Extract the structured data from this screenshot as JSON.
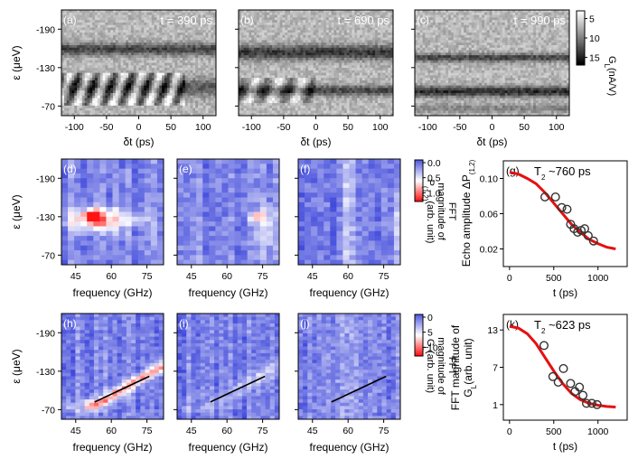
{
  "chart_data": [
    {
      "type": "heatmap",
      "row": "top",
      "panels": [
        {
          "label": "(a)",
          "annotation": "t = 390 ps"
        },
        {
          "label": "(b)",
          "annotation": "t = 690 ps"
        },
        {
          "label": "(c)",
          "annotation": "t = 990 ps"
        }
      ],
      "xlabel": "δt (ps)",
      "ylabel": "ε (μeV)",
      "xticks": [
        "-100",
        "-50",
        "0",
        "50",
        "100"
      ],
      "yticks": [
        "-190",
        "-130",
        "-70"
      ],
      "xlim": [
        -120,
        120
      ],
      "ylim": [
        -220,
        -55
      ],
      "colorbar": {
        "label": "G_L(nA/V)",
        "label_main": "G",
        "label_sub": "L",
        "label_rest": "(nA/V)",
        "ticks": [
          "5",
          "10",
          "15"
        ],
        "colormap": "gray",
        "range": [
          3,
          17
        ]
      }
    },
    {
      "type": "heatmap",
      "row": "middle",
      "panels": [
        {
          "label": "(d)"
        },
        {
          "label": "(e)"
        },
        {
          "label": "(f)"
        }
      ],
      "xlabel": "frequency (GHz)",
      "ylabel": "ε (μeV)",
      "xticks": [
        "45",
        "60",
        "75"
      ],
      "yticks": [
        "-190",
        "-130",
        "-70"
      ],
      "xlim": [
        39,
        82
      ],
      "ylim": [
        -220,
        -55
      ],
      "colorbar": {
        "label": "FFT magnitude of P_(1,2) (arb. unit)",
        "label_line1": "FFT",
        "label_line2": "magnitude of",
        "label_main": "P",
        "label_sub": "(1,2)",
        "label_rest": "(arb. unit)",
        "ticks": [
          "0.0",
          "0.5",
          "1.0"
        ],
        "colormap": "blue-white-red",
        "range": [
          0,
          1.2
        ]
      }
    },
    {
      "type": "heatmap",
      "row": "bottom",
      "panels": [
        {
          "label": "(h)"
        },
        {
          "label": "(i)"
        },
        {
          "label": "(j)"
        }
      ],
      "xlabel": "frequency (GHz)",
      "ylabel": "ε (μeV)",
      "xticks": [
        "45",
        "60",
        "75"
      ],
      "yticks": [
        "-190",
        "-130",
        "-70"
      ],
      "xlim": [
        39,
        82
      ],
      "ylim": [
        -220,
        -55
      ],
      "colorbar": {
        "label": "FFT magnitude of G_L (arb. unit)",
        "label_line1": "FFT",
        "label_line2": "magnitude of",
        "label_main": "G",
        "label_sub": "L",
        "label_rest": "(arb. unit)",
        "ticks": [
          "0",
          "5",
          "10"
        ],
        "colormap": "blue-white-red",
        "range": [
          0,
          12
        ]
      },
      "guide_lines": [
        {
          "panel": "(h)",
          "x": [
            53,
            76
          ],
          "y": [
            -82,
            -122
          ]
        },
        {
          "panel": "(i)",
          "x": [
            53,
            76
          ],
          "y": [
            -82,
            -122
          ]
        },
        {
          "panel": "(j)",
          "x": [
            53,
            76
          ],
          "y": [
            -82,
            -122
          ]
        }
      ]
    },
    {
      "type": "scatter",
      "panel": "(g)",
      "annotation_main": "T",
      "annotation_sub": "2",
      "annotation_rest": " ~760 ps",
      "xlabel": "t (ps)",
      "ylabel_main": "Echo amplitude ΔP",
      "ylabel_sub": "(1,2)",
      "xticks": [
        0,
        500,
        1000
      ],
      "yticks": [
        0.02,
        0.06,
        0.1
      ],
      "xlim": [
        -70,
        1330
      ],
      "ylim": [
        0.0,
        0.12
      ],
      "series": [
        {
          "type": "scatter",
          "x": [
            400,
            520,
            590,
            650,
            690,
            730,
            770,
            810,
            850,
            890,
            950
          ],
          "y": [
            0.079,
            0.079,
            0.067,
            0.065,
            0.048,
            0.043,
            0.039,
            0.041,
            0.043,
            0.035,
            0.029
          ]
        },
        {
          "type": "line",
          "color": "#e51010",
          "x": [
            0,
            100,
            200,
            300,
            400,
            500,
            600,
            700,
            800,
            900,
            1000,
            1100,
            1200
          ],
          "y": [
            0.107,
            0.105,
            0.1,
            0.094,
            0.084,
            0.072,
            0.06,
            0.048,
            0.039,
            0.031,
            0.026,
            0.022,
            0.02
          ]
        }
      ]
    },
    {
      "type": "scatter",
      "panel": "(k)",
      "annotation_main": "T",
      "annotation_sub": "2",
      "annotation_rest": " ~623 ps",
      "xlabel": "t (ps)",
      "ylabel_line1": "FFT magnitude of",
      "ylabel_main": "G",
      "ylabel_sub": "L",
      "ylabel_rest": "(arb. unit)",
      "xticks": [
        0,
        500,
        1000
      ],
      "yticks": [
        1,
        7,
        13
      ],
      "xlim": [
        -70,
        1330
      ],
      "ylim": [
        -1.5,
        15.5
      ],
      "series": [
        {
          "type": "scatter",
          "x": [
            390,
            490,
            550,
            610,
            690,
            740,
            790,
            830,
            870,
            930,
            990
          ],
          "y": [
            10.5,
            5.5,
            4.6,
            6.8,
            4.4,
            3.1,
            3.8,
            2.5,
            1.2,
            1.2,
            1.0
          ]
        },
        {
          "type": "line",
          "color": "#e51010",
          "x": [
            0,
            100,
            200,
            300,
            400,
            500,
            600,
            700,
            800,
            900,
            1000,
            1100,
            1200
          ],
          "y": [
            13.6,
            13.3,
            12.4,
            10.8,
            8.6,
            6.4,
            4.4,
            2.8,
            1.8,
            1.2,
            0.9,
            0.7,
            0.6
          ]
        }
      ]
    }
  ]
}
